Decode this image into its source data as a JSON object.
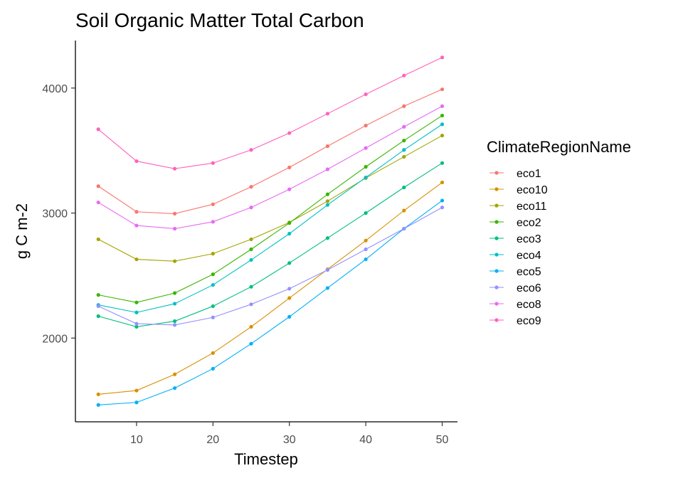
{
  "chart_data": {
    "type": "line",
    "title": "Soil Organic Matter Total Carbon",
    "xlabel": "Timestep",
    "ylabel": "g C m-2",
    "xlim": [
      2,
      52
    ],
    "ylim": [
      1330,
      4380
    ],
    "x": [
      5,
      10,
      15,
      20,
      25,
      30,
      35,
      40,
      45,
      50
    ],
    "x_ticks": [
      10,
      20,
      30,
      40,
      50
    ],
    "y_ticks": [
      2000,
      3000,
      4000
    ],
    "grid": false,
    "legend_title": "ClimateRegionName",
    "legend_position": "right",
    "series": [
      {
        "name": "eco1",
        "color": "#F8766D",
        "values": [
          3215,
          3010,
          2995,
          3070,
          3210,
          3365,
          3535,
          3700,
          3855,
          3990
        ]
      },
      {
        "name": "eco10",
        "color": "#D89000",
        "values": [
          1550,
          1580,
          1710,
          1880,
          2090,
          2320,
          2550,
          2780,
          3020,
          3245
        ]
      },
      {
        "name": "eco11",
        "color": "#A3A500",
        "values": [
          2790,
          2630,
          2615,
          2675,
          2790,
          2925,
          3095,
          3280,
          3450,
          3620
        ]
      },
      {
        "name": "eco2",
        "color": "#39B600",
        "values": [
          2345,
          2285,
          2360,
          2510,
          2710,
          2920,
          3150,
          3370,
          3580,
          3780
        ]
      },
      {
        "name": "eco3",
        "color": "#00BF7D",
        "values": [
          2175,
          2090,
          2135,
          2255,
          2410,
          2600,
          2800,
          3000,
          3205,
          3400
        ]
      },
      {
        "name": "eco4",
        "color": "#00BFC4",
        "values": [
          2265,
          2205,
          2275,
          2425,
          2625,
          2835,
          3065,
          3285,
          3505,
          3710
        ]
      },
      {
        "name": "eco5",
        "color": "#00B0F6",
        "values": [
          1465,
          1485,
          1600,
          1755,
          1955,
          2170,
          2400,
          2630,
          2875,
          3100
        ]
      },
      {
        "name": "eco6",
        "color": "#9590FF",
        "values": [
          2255,
          2115,
          2105,
          2165,
          2270,
          2395,
          2545,
          2710,
          2875,
          3045
        ]
      },
      {
        "name": "eco8",
        "color": "#E76BF3",
        "values": [
          3085,
          2900,
          2875,
          2930,
          3045,
          3190,
          3350,
          3520,
          3690,
          3855
        ]
      },
      {
        "name": "eco9",
        "color": "#FF62BC",
        "values": [
          3670,
          3415,
          3355,
          3400,
          3505,
          3640,
          3795,
          3950,
          4100,
          4245
        ]
      }
    ]
  }
}
